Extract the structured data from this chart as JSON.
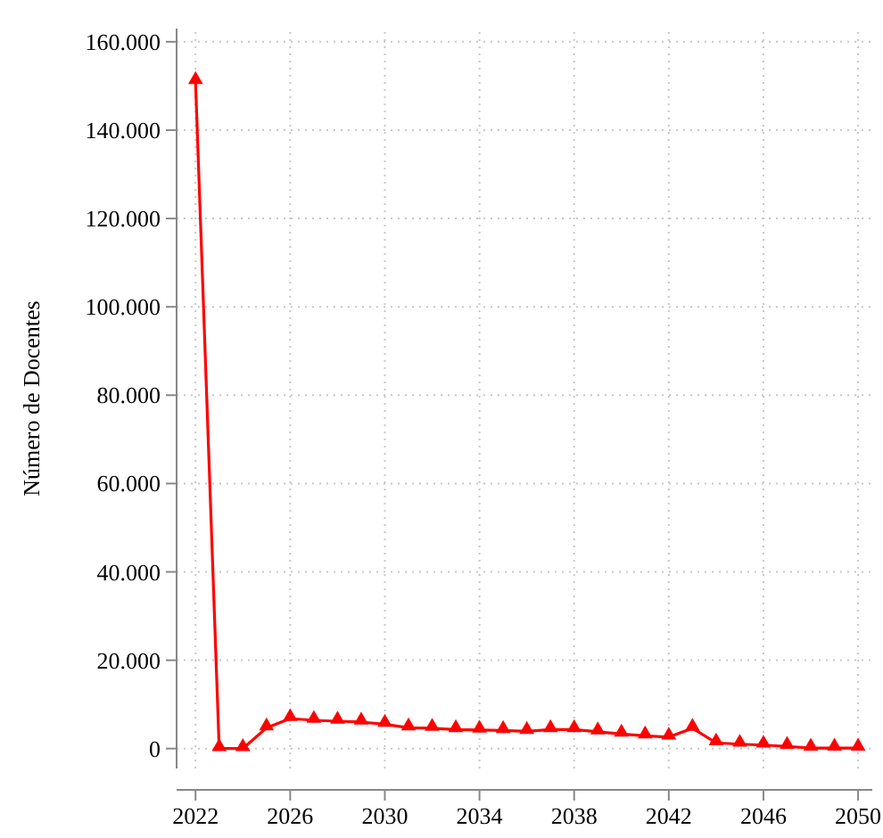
{
  "chart_data": {
    "type": "line",
    "ylabel": "Número de Docentes",
    "x": [
      2022,
      2023,
      2024,
      2025,
      2026,
      2027,
      2028,
      2029,
      2030,
      2031,
      2032,
      2033,
      2034,
      2035,
      2036,
      2037,
      2038,
      2039,
      2040,
      2041,
      2042,
      2043,
      2044,
      2045,
      2046,
      2047,
      2048,
      2049,
      2050
    ],
    "series": [
      {
        "color": "#ff0000",
        "values": [
          151000,
          0,
          0,
          4700,
          6800,
          6400,
          6200,
          6000,
          5500,
          4700,
          4600,
          4300,
          4200,
          4100,
          3900,
          4300,
          4300,
          3800,
          3300,
          2900,
          2600,
          4600,
          1300,
          1000,
          800,
          500,
          100,
          100,
          100
        ]
      }
    ],
    "xlim": [
      2021.2,
      2050.6
    ],
    "xticks": [
      2022,
      2026,
      2030,
      2034,
      2038,
      2042,
      2046,
      2050
    ],
    "ylim": [
      -4500,
      163000
    ],
    "yticks": [
      {
        "value": 0,
        "label": "0"
      },
      {
        "value": 20000,
        "label": "20.000"
      },
      {
        "value": 40000,
        "label": "40.000"
      },
      {
        "value": 60000,
        "label": "60.000"
      },
      {
        "value": 80000,
        "label": "80.000"
      },
      {
        "value": 100000,
        "label": "100.000"
      },
      {
        "value": 120000,
        "label": "120.000"
      },
      {
        "value": 140000,
        "label": "140.000"
      },
      {
        "value": 160000,
        "label": "160.000"
      }
    ],
    "grid": true,
    "marker": "triangle",
    "line_style": "solid"
  }
}
